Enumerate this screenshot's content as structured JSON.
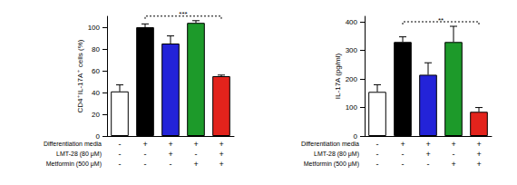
{
  "chart_data": [
    {
      "type": "bar",
      "y_label": "CD4⁺IL-17A⁺ cells (%)",
      "categories": [
        null,
        null,
        null,
        null,
        null
      ],
      "values": [
        41,
        100,
        85,
        104,
        55
      ],
      "errors": [
        6,
        3,
        7,
        2,
        1
      ],
      "colors": [
        "#ffffff",
        "#000000",
        "#2323d8",
        "#1d9a2a",
        "#e3231c"
      ],
      "ylim": [
        0,
        110
      ],
      "yticks": [
        0,
        20,
        40,
        60,
        80,
        100
      ],
      "grid": false,
      "significance": {
        "from": 1,
        "to": 4,
        "label": "***",
        "line_style": "dashed"
      },
      "conditions": [
        {
          "label": "Differentiation media",
          "values": [
            "-",
            "+",
            "+",
            "+",
            "+"
          ]
        },
        {
          "label": "LMT-28 (80 μM)",
          "values": [
            "-",
            "-",
            "+",
            "-",
            "+"
          ]
        },
        {
          "label": "Metformin (500 μM)",
          "values": [
            "-",
            "-",
            "-",
            "+",
            "+"
          ]
        }
      ]
    },
    {
      "type": "bar",
      "y_label": "IL-17A (pg/ml)",
      "categories": [
        null,
        null,
        null,
        null,
        null
      ],
      "values": [
        155,
        330,
        215,
        330,
        85
      ],
      "errors": [
        25,
        18,
        42,
        55,
        15
      ],
      "colors": [
        "#ffffff",
        "#000000",
        "#2323d8",
        "#1d9a2a",
        "#e3231c"
      ],
      "ylim": [
        0,
        420
      ],
      "yticks": [
        0,
        100,
        200,
        300,
        400
      ],
      "grid": false,
      "significance": {
        "from": 1,
        "to": 4,
        "label": "**",
        "line_style": "dashed"
      },
      "conditions": [
        {
          "label": "Differentiation media",
          "values": [
            "-",
            "+",
            "+",
            "+",
            "+"
          ]
        },
        {
          "label": "LMT-28 (80 μM)",
          "values": [
            "-",
            "-",
            "+",
            "-",
            "+"
          ]
        },
        {
          "label": "Metformin (500 μM)",
          "values": [
            "-",
            "-",
            "-",
            "+",
            "+"
          ]
        }
      ]
    }
  ]
}
